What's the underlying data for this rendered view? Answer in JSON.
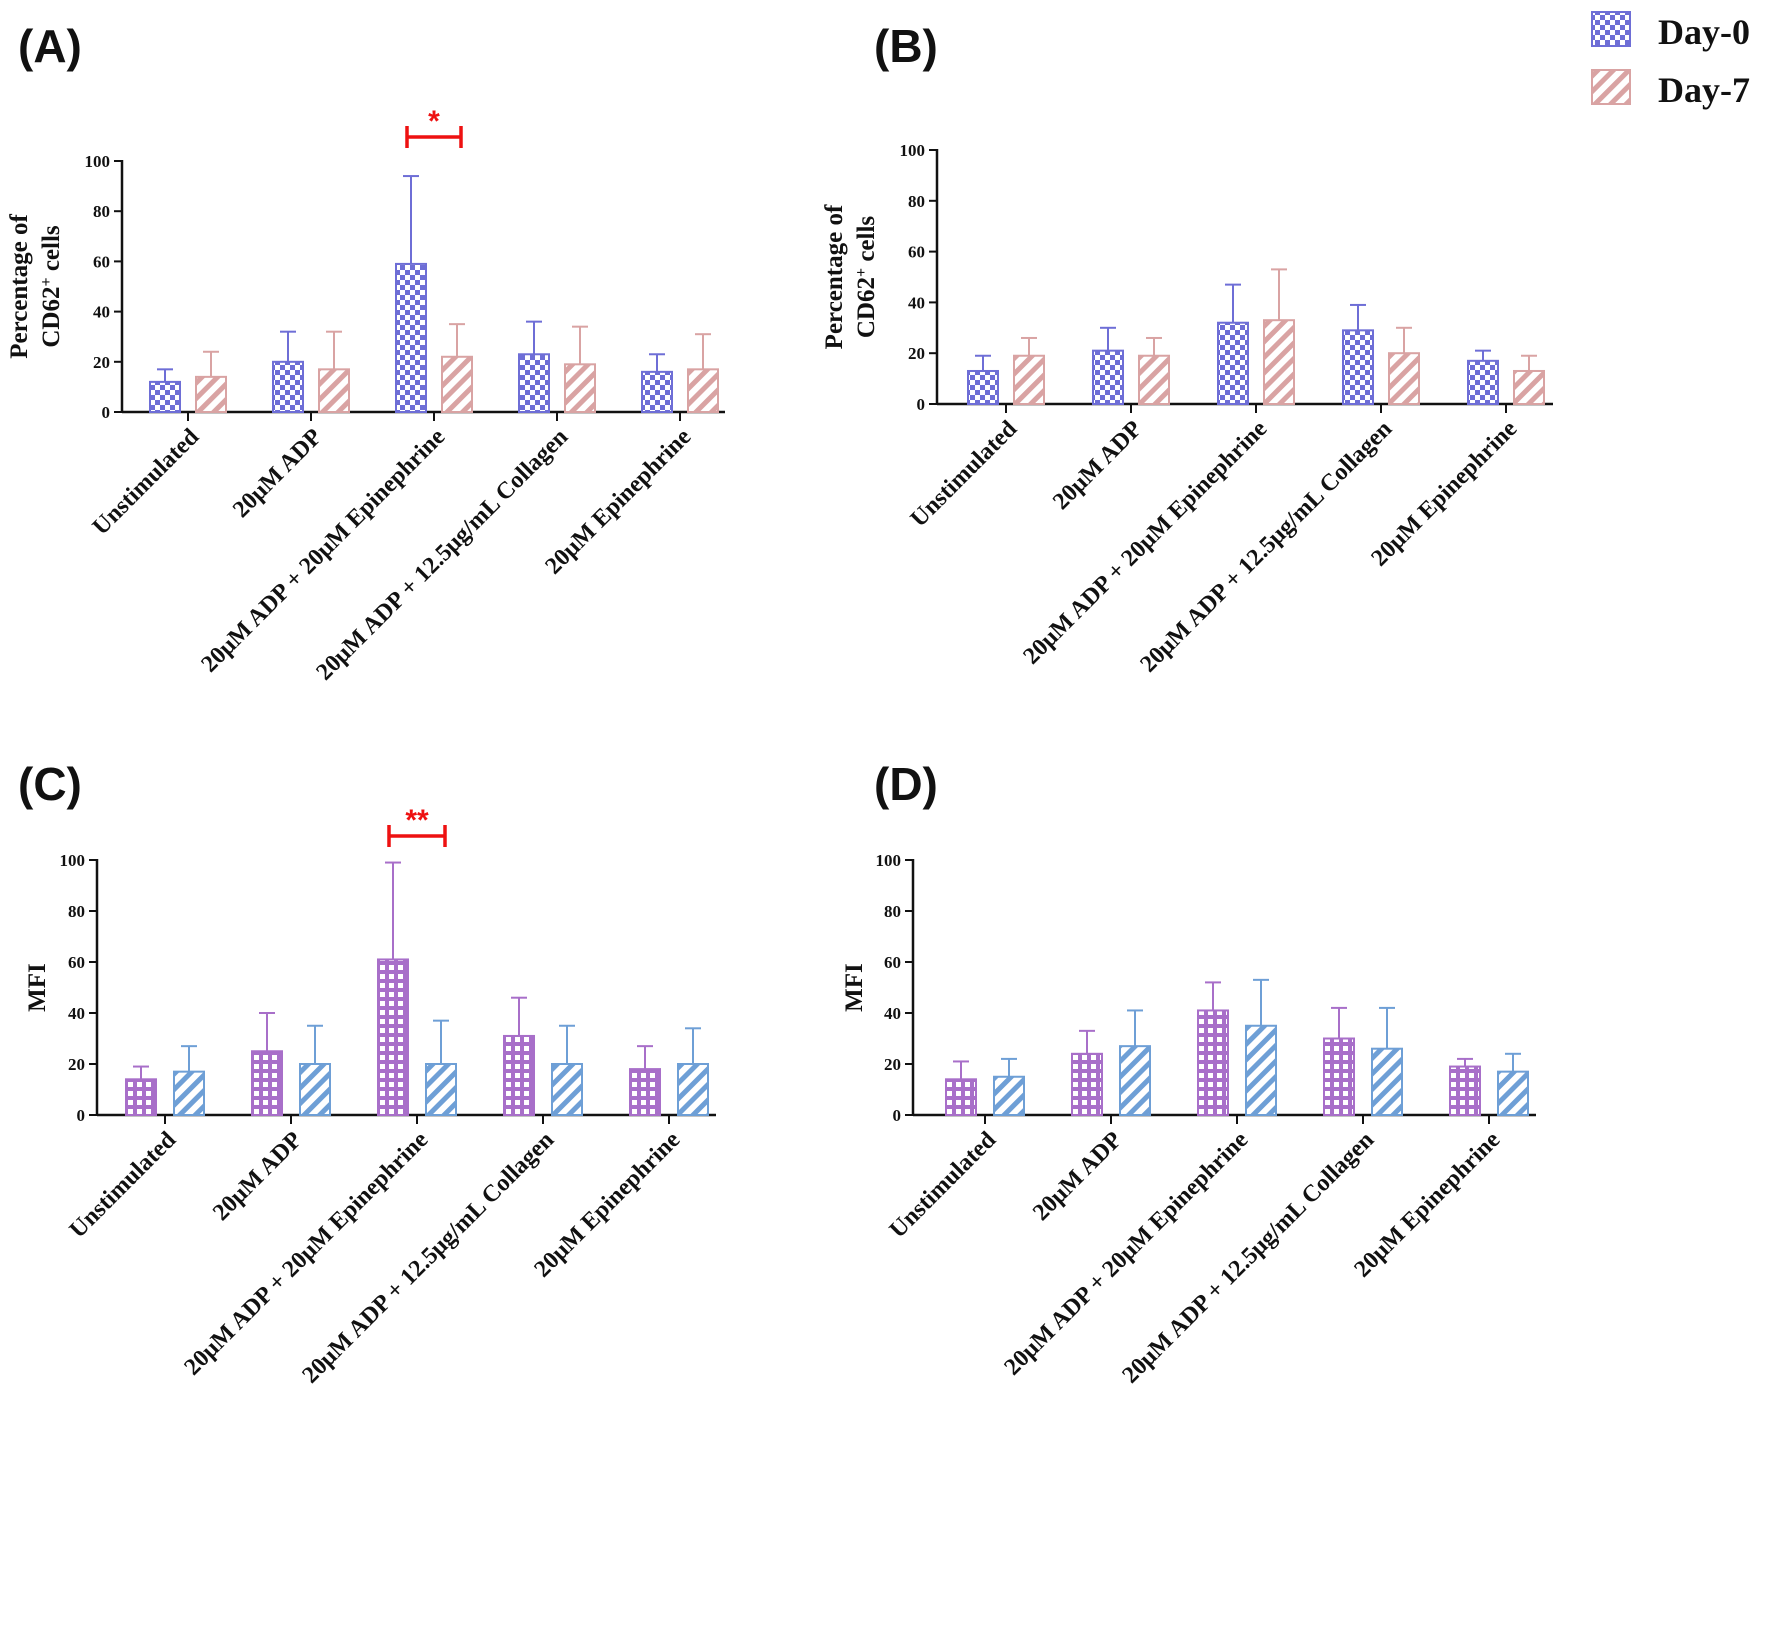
{
  "legend": {
    "day0": {
      "label": "Day-0",
      "color": "#6e6ed6"
    },
    "day7": {
      "label": "Day-7",
      "color": "#d9a3a3"
    }
  },
  "colors": {
    "panelC_day0": "#a86fc9",
    "panelC_day7": "#6e9fd6",
    "significance": "#ee1111",
    "axis": "#111111"
  },
  "categories": [
    "Unstimulated",
    "20μM ADP",
    "20μM ADP + 20μM Epinephrine",
    "20μM ADP + 12.5μg/mL Collagen",
    "20μM Epinephrine"
  ],
  "chart_data": [
    {
      "panel": "(A)",
      "type": "bar",
      "ylabel_line1": "Percentage of",
      "ylabel_line2": "CD62",
      "ylabel_sup": "+",
      "ylabel_suffix": " cells",
      "ylim": [
        0,
        100
      ],
      "yticks": [
        0,
        20,
        40,
        60,
        80,
        100
      ],
      "series": [
        {
          "name": "Day-0",
          "pattern": "checker",
          "color": "#6e6ed6",
          "values": [
            12,
            20,
            59,
            23,
            16
          ],
          "errors": [
            5,
            12,
            35,
            13,
            7
          ]
        },
        {
          "name": "Day-7",
          "pattern": "hatch",
          "color": "#d9a3a3",
          "values": [
            14,
            17,
            22,
            19,
            17
          ],
          "errors": [
            10,
            15,
            13,
            15,
            14
          ]
        }
      ],
      "significance": {
        "category_index": 2,
        "label": "*"
      }
    },
    {
      "panel": "(B)",
      "type": "bar",
      "ylabel_line1": "Percentage of",
      "ylabel_line2": "CD62",
      "ylabel_sup": "+",
      "ylabel_suffix": " cells",
      "ylim": [
        0,
        100
      ],
      "yticks": [
        0,
        20,
        40,
        60,
        80,
        100
      ],
      "series": [
        {
          "name": "Day-0",
          "pattern": "checker",
          "color": "#6e6ed6",
          "values": [
            13,
            21,
            32,
            29,
            17
          ],
          "errors": [
            6,
            9,
            15,
            10,
            4
          ]
        },
        {
          "name": "Day-7",
          "pattern": "hatch",
          "color": "#d9a3a3",
          "values": [
            19,
            19,
            33,
            20,
            13
          ],
          "errors": [
            7,
            7,
            20,
            10,
            6
          ]
        }
      ]
    },
    {
      "panel": "(C)",
      "type": "bar",
      "ylabel_line1": "MFI",
      "ylim": [
        0,
        100
      ],
      "yticks": [
        0,
        20,
        40,
        60,
        80,
        100
      ],
      "series": [
        {
          "name": "Day-0",
          "pattern": "grid",
          "color": "#a86fc9",
          "values": [
            14,
            25,
            61,
            31,
            18
          ],
          "errors": [
            5,
            15,
            38,
            15,
            9
          ]
        },
        {
          "name": "Day-7",
          "pattern": "hatch",
          "color": "#6e9fd6",
          "values": [
            17,
            20,
            20,
            20,
            20
          ],
          "errors": [
            10,
            15,
            17,
            15,
            14
          ]
        }
      ],
      "significance": {
        "category_index": 2,
        "label": "**"
      }
    },
    {
      "panel": "(D)",
      "type": "bar",
      "ylabel_line1": "MFI",
      "ylim": [
        0,
        100
      ],
      "yticks": [
        0,
        20,
        40,
        60,
        80,
        100
      ],
      "series": [
        {
          "name": "Day-0",
          "pattern": "grid",
          "color": "#a86fc9",
          "values": [
            14,
            24,
            41,
            30,
            19
          ],
          "errors": [
            7,
            9,
            11,
            12,
            3
          ]
        },
        {
          "name": "Day-7",
          "pattern": "hatch",
          "color": "#6e9fd6",
          "values": [
            15,
            27,
            35,
            26,
            17
          ],
          "errors": [
            7,
            14,
            18,
            16,
            7
          ]
        }
      ]
    }
  ]
}
